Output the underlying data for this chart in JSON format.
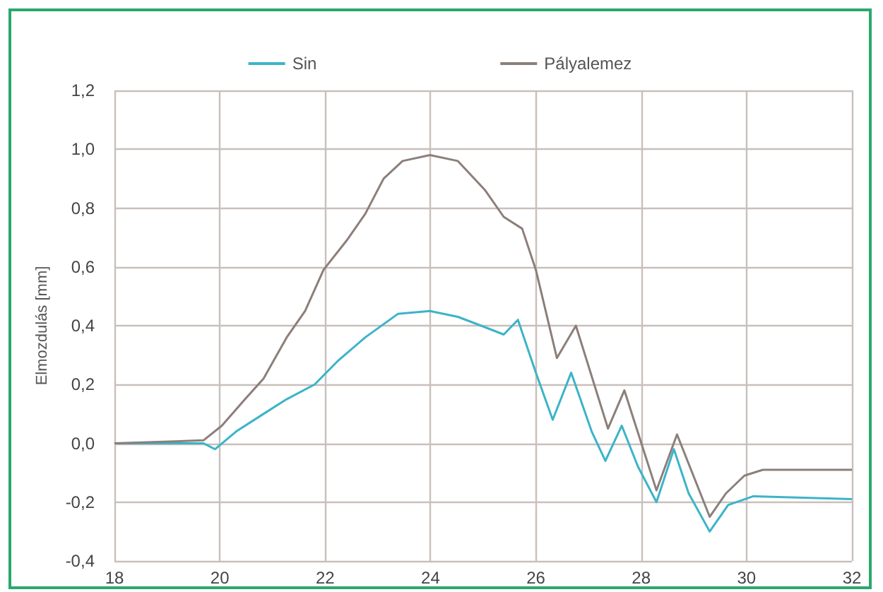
{
  "chart_data": {
    "type": "line",
    "ylabel": "Elmozdulás [mm]",
    "legend": "top",
    "grid": true,
    "marker": "none",
    "line_style": "solid",
    "xlim": [
      18,
      32
    ],
    "xticks": [
      18,
      20,
      22,
      24,
      26,
      28,
      30,
      32
    ],
    "ylim": [
      -0.4,
      1.2
    ],
    "yticks": [
      {
        "value": -0.4,
        "label": "-0,4"
      },
      {
        "value": -0.2,
        "label": "-0,2"
      },
      {
        "value": 0,
        "label": "0,0"
      },
      {
        "value": 0.2,
        "label": "0,2"
      },
      {
        "value": 0.4,
        "label": "0,4"
      },
      {
        "value": 0.6,
        "label": "0,6"
      },
      {
        "value": 0.8,
        "label": "0,8"
      },
      {
        "value": 1.0,
        "label": "1,0"
      },
      {
        "value": 1.2,
        "label": "1,2"
      }
    ],
    "series": [
      {
        "name": "Sin",
        "color": "#3bb4c8",
        "x": [
          18,
          19.69,
          19.91,
          20.31,
          20.83,
          21.27,
          21.8,
          22.24,
          22.76,
          23.38,
          23.99,
          24.52,
          24.96,
          25.39,
          25.66,
          26.0,
          26.32,
          26.67,
          27.06,
          27.32,
          27.63,
          27.94,
          28.29,
          28.62,
          28.9,
          29.3,
          29.65,
          30.13,
          32
        ],
        "values": [
          0,
          0,
          -0.02,
          0.04,
          0.1,
          0.15,
          0.2,
          0.28,
          0.36,
          0.44,
          0.45,
          0.43,
          0.4,
          0.37,
          0.42,
          0.24,
          0.08,
          0.24,
          0.04,
          -0.06,
          0.06,
          -0.08,
          -0.2,
          -0.02,
          -0.17,
          -0.3,
          -0.21,
          -0.18,
          -0.19
        ]
      },
      {
        "name": "Pályalemez",
        "color": "#8c7f7a",
        "x": [
          18,
          19.69,
          20.04,
          20.48,
          20.83,
          21.27,
          21.62,
          21.97,
          22.41,
          22.76,
          23.11,
          23.47,
          23.99,
          24.52,
          25.04,
          25.39,
          25.74,
          26.0,
          26.4,
          26.76,
          27.37,
          27.68,
          28.29,
          28.68,
          29.3,
          29.61,
          29.96,
          30.31,
          32
        ],
        "values": [
          0,
          0.01,
          0.06,
          0.15,
          0.22,
          0.36,
          0.45,
          0.59,
          0.69,
          0.78,
          0.9,
          0.96,
          0.98,
          0.96,
          0.86,
          0.77,
          0.73,
          0.59,
          0.29,
          0.4,
          0.05,
          0.18,
          -0.16,
          0.03,
          -0.25,
          -0.17,
          -0.11,
          -0.09,
          -0.09
        ]
      }
    ]
  }
}
